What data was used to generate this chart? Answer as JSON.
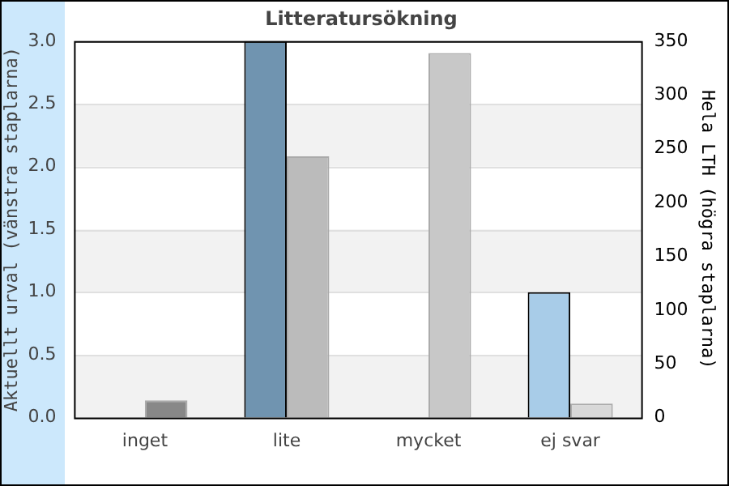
{
  "chart_data": {
    "type": "bar",
    "title": "Litteratursökning",
    "ylabel": "Aktuellt urval (vänstra staplarna)",
    "y2label": "Hela LTH (högra staplarna)",
    "categories": [
      "inget",
      "lite",
      "mycket",
      "ej svar"
    ],
    "series": [
      {
        "colors": [
          "#7094b0",
          "#7094b0",
          "#7094b0",
          "#a8cce8"
        ],
        "values": [
          0,
          3,
          0,
          1
        ]
      },
      {
        "colors": [
          "#888888",
          "#bbbbbb",
          "#c8c8c8",
          "#d8d8d8"
        ],
        "values": [
          16,
          243,
          339,
          13
        ],
        "axis": "y2"
      }
    ],
    "ylim": [
      0,
      3
    ],
    "yticks": [
      {
        "value": 0,
        "label": "0.0"
      },
      {
        "value": 0.5,
        "label": "0.5"
      },
      {
        "value": 1,
        "label": "1.0"
      },
      {
        "value": 1.5,
        "label": "1.5"
      },
      {
        "value": 2,
        "label": "2.0"
      },
      {
        "value": 2.5,
        "label": "2.5"
      },
      {
        "value": 3,
        "label": "3.0"
      }
    ],
    "y2lim": [
      0,
      350
    ],
    "y2ticks": [
      0,
      50,
      100,
      150,
      200,
      250,
      300,
      350
    ],
    "grid": "y",
    "legend": false
  }
}
